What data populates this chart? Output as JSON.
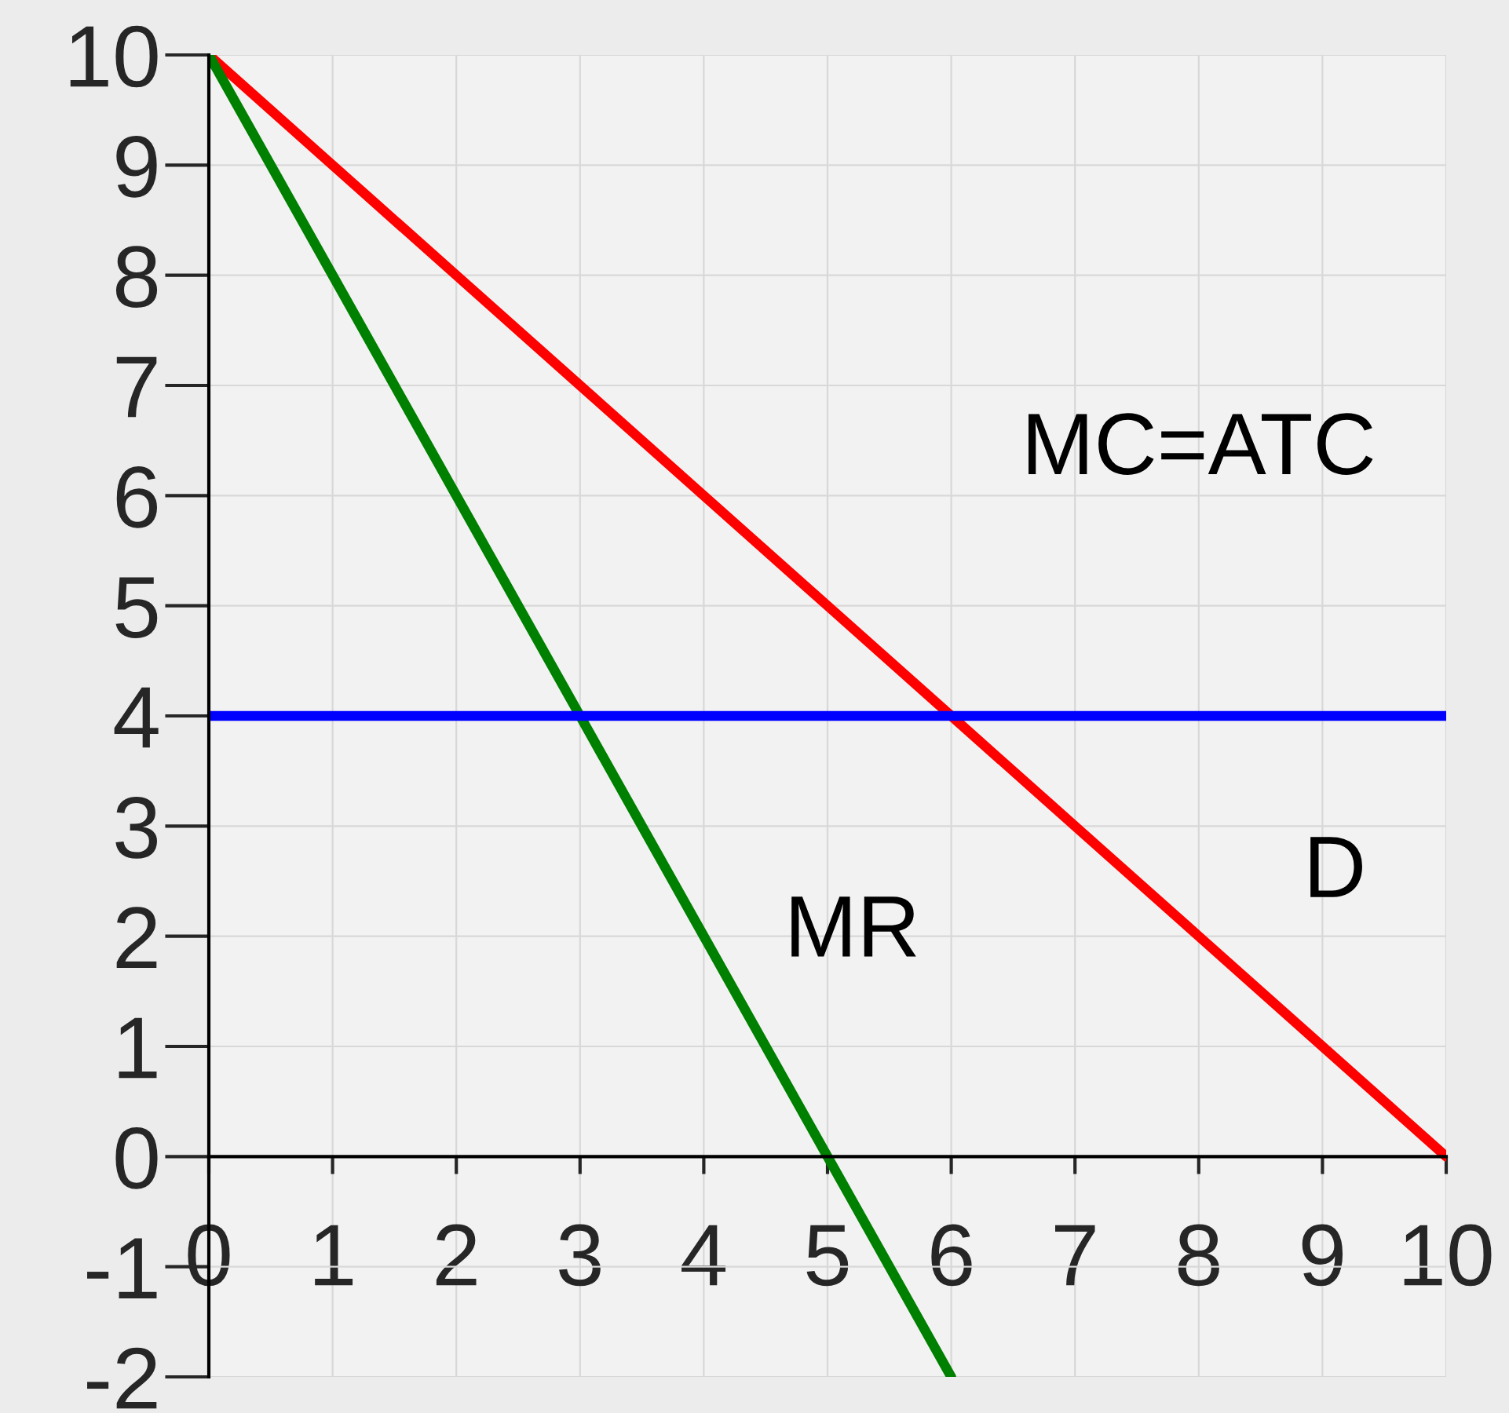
{
  "chart_data": {
    "type": "line",
    "xlim": [
      0,
      10
    ],
    "ylim": [
      -2,
      10
    ],
    "xticks": [
      0,
      1,
      2,
      3,
      4,
      5,
      6,
      7,
      8,
      9,
      10
    ],
    "yticks": [
      -2,
      -1,
      0,
      1,
      2,
      3,
      4,
      5,
      6,
      7,
      8,
      9,
      10
    ],
    "grid": true,
    "legend": false,
    "marker": "none",
    "line_style": "solid",
    "series": [
      {
        "name": "D",
        "color": "#ff0000",
        "x": [
          0,
          1,
          2,
          3,
          4,
          5,
          6,
          7,
          8,
          9,
          10
        ],
        "values": [
          10,
          9,
          8,
          7,
          6,
          5,
          4,
          3,
          2,
          1,
          0
        ]
      },
      {
        "name": "MR",
        "color": "#008000",
        "x": [
          0,
          1,
          2,
          3,
          4,
          5,
          6
        ],
        "values": [
          10,
          8,
          6,
          4,
          2,
          0,
          -2
        ]
      },
      {
        "name": "MC=ATC",
        "color": "#0000ff",
        "x": [
          0,
          10
        ],
        "values": [
          4,
          4
        ]
      }
    ]
  }
}
